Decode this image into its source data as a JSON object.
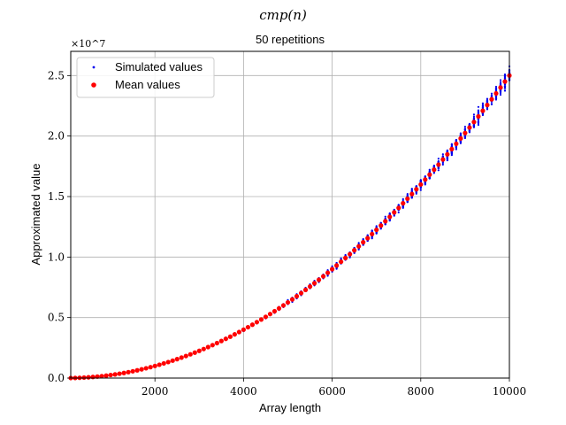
{
  "chart_data": {
    "type": "scatter",
    "suptitle": "cmp(n)",
    "title": "50 repetitions",
    "xlabel": "Array length",
    "ylabel": "Approximated value",
    "y_offset_label": "×10^7",
    "y_scale": 10000000,
    "xlim": [
      100,
      10000
    ],
    "ylim": [
      0,
      27000000
    ],
    "x_ticks": [
      2000,
      4000,
      6000,
      8000,
      10000
    ],
    "x_tick_labels": [
      "2000",
      "4000",
      "6000",
      "8000",
      "10000"
    ],
    "y_ticks": [
      0,
      5000000,
      10000000,
      15000000,
      20000000,
      25000000
    ],
    "y_tick_labels": [
      "0.0",
      "0.5",
      "1.0",
      "1.5",
      "2.0",
      "2.5"
    ],
    "grid": true,
    "legend": {
      "placement": "upper-left"
    },
    "mean_model": {
      "formula": "y = 0.25 * n^2",
      "n_start": 100,
      "n_end": 10000,
      "n_step": 100
    },
    "series": [
      {
        "name": "Simulated values",
        "color": "#0000ee",
        "marker": "small-dot",
        "repetitions": 50,
        "relative_spread": 0.02
      },
      {
        "name": "Mean values",
        "color": "#ff0000",
        "marker": "dot"
      }
    ]
  }
}
